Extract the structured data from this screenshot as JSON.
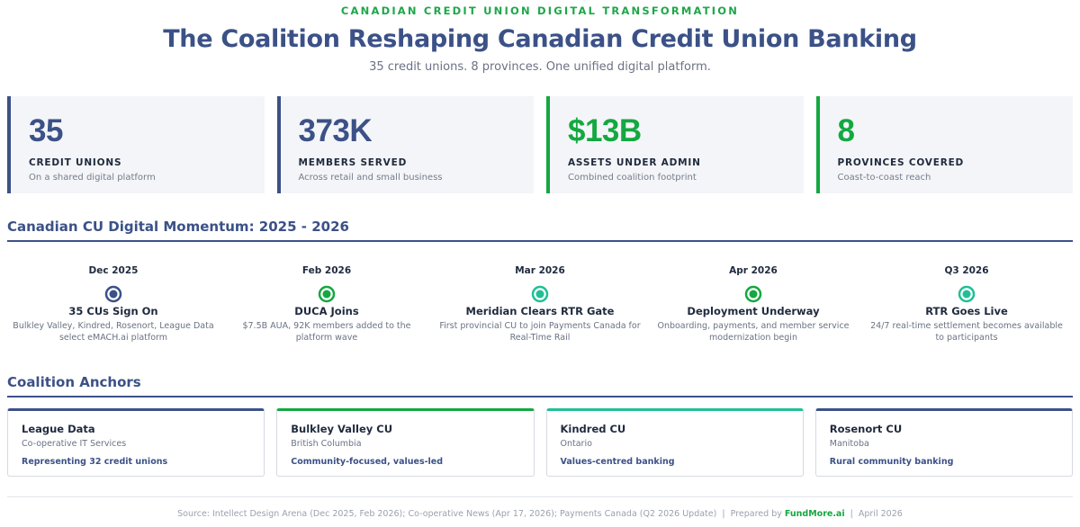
{
  "header": {
    "kicker": "CANADIAN CREDIT UNION DIGITAL TRANSFORMATION",
    "title": "The Coalition Reshaping Canadian Credit Union Banking",
    "subtitle": "35 credit unions. 8 provinces. One unified digital platform."
  },
  "stats": [
    {
      "value": "35",
      "label": "CREDIT UNIONS",
      "sub": "On a shared digital platform",
      "accent": "#3b5187"
    },
    {
      "value": "373K",
      "label": "MEMBERS SERVED",
      "sub": "Across retail and small business",
      "accent": "#3b5187"
    },
    {
      "value": "$13B",
      "label": "ASSETS UNDER ADMIN",
      "sub": "Combined coalition footprint",
      "accent": "#14a840"
    },
    {
      "value": "8",
      "label": "PROVINCES COVERED",
      "sub": "Coast-to-coast reach",
      "accent": "#14a840"
    }
  ],
  "timeline": {
    "section_title": "Canadian CU Digital Momentum: 2025 - 2026",
    "items": [
      {
        "date": "Dec 2025",
        "title": "35 CUs Sign On",
        "desc": "Bulkley Valley, Kindred, Rosenort, League Data select eMACH.ai platform",
        "marker_color": "#3b5187"
      },
      {
        "date": "Feb 2026",
        "title": "DUCA Joins",
        "desc": "$7.5B AUA, 92K members added to the platform wave",
        "marker_color": "#14a840"
      },
      {
        "date": "Mar 2026",
        "title": "Meridian Clears RTR Gate",
        "desc": "First provincial CU to join Payments Canada for Real-Time Rail",
        "marker_color": "#20bf96"
      },
      {
        "date": "Apr 2026",
        "title": "Deployment Underway",
        "desc": "Onboarding, payments, and member service modernization begin",
        "marker_color": "#14a840"
      },
      {
        "date": "Q3 2026",
        "title": "RTR Goes Live",
        "desc": "24/7 real-time settlement becomes available to participants",
        "marker_color": "#20bf96"
      }
    ]
  },
  "anchors": {
    "section_title": "Coalition Anchors",
    "items": [
      {
        "name": "League Data",
        "region": "Co-operative IT Services",
        "note": "Representing 32 credit unions",
        "accent": "#3b5187"
      },
      {
        "name": "Bulkley Valley CU",
        "region": "British Columbia",
        "note": "Community-focused, values-led",
        "accent": "#14a840"
      },
      {
        "name": "Kindred CU",
        "region": "Ontario",
        "note": "Values-centred banking",
        "accent": "#20bf96"
      },
      {
        "name": "Rosenort CU",
        "region": "Manitoba",
        "note": "Rural community banking",
        "accent": "#3b5187"
      }
    ]
  },
  "footer": {
    "source": "Source: Intellect Design Arena (Dec 2025, Feb 2026); Co-operative News (Apr 17, 2026); Payments Canada (Q2 2026 Update)",
    "sep1": "|",
    "prepared_by": "Prepared by",
    "brand": "FundMore.ai",
    "sep2": "|",
    "date": "April 2026"
  },
  "colors": {
    "navy": "#3b5187",
    "green": "#14a840",
    "teal": "#20bf96"
  }
}
